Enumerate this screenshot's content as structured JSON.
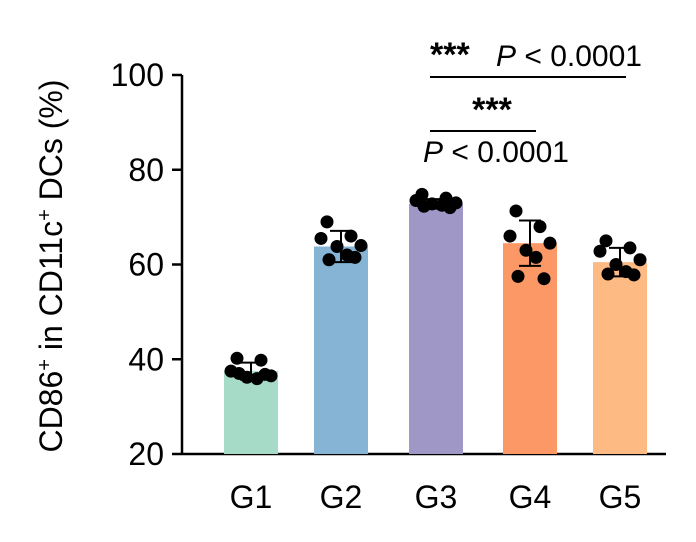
{
  "chart_data": {
    "type": "bar",
    "ylabel_parts": [
      "CD86",
      "+",
      " in CD11c",
      "+",
      " DCs (%)"
    ],
    "categories": [
      "G1",
      "G2",
      "G3",
      "G4",
      "G5"
    ],
    "values": [
      37.5,
      63.8,
      72.8,
      64.5,
      60.5
    ],
    "errors": [
      1.8,
      3.3,
      1.0,
      4.8,
      3.0
    ],
    "colors": [
      "#a6dcc7",
      "#86b4d4",
      "#9f97c5",
      "#fb9866",
      "#fdba82"
    ],
    "points": [
      [
        40.2,
        39.8,
        37.5,
        36.5,
        36.2,
        35.9,
        37.0,
        36.8
      ],
      [
        69.0,
        66.0,
        65.5,
        64.0,
        63.8,
        62.0,
        61.0,
        61.5
      ],
      [
        74.8,
        74.0,
        73.5,
        73.0,
        72.8,
        72.5,
        72.3,
        72.0
      ],
      [
        71.3,
        68.0,
        66.0,
        64.5,
        63.0,
        61.5,
        57.5,
        57.0
      ],
      [
        65.0,
        63.5,
        62.8,
        61.0,
        60.0,
        58.5,
        58.0,
        57.8
      ]
    ],
    "ylim": [
      20,
      100
    ],
    "yticks": [
      20,
      40,
      60,
      80,
      100
    ],
    "significance": [
      {
        "from": "G3",
        "to": "G5",
        "stars": "***",
        "p_symbol": "P",
        "p_text": " < 0.0001"
      },
      {
        "from": "G3",
        "to": "G4",
        "stars": "***",
        "p_symbol": "P",
        "p_text": " < 0.0001"
      }
    ]
  }
}
